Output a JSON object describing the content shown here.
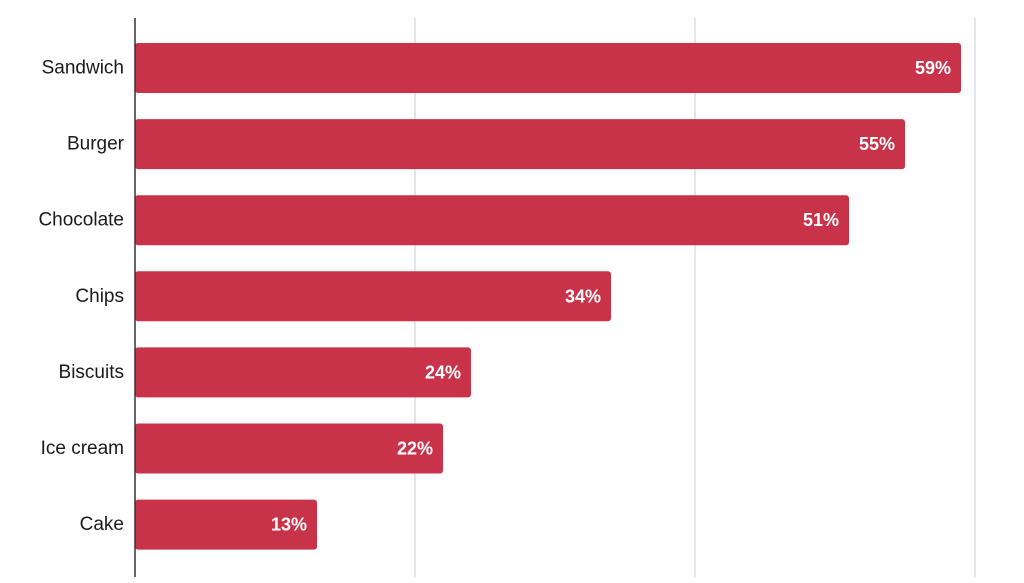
{
  "chart_data": {
    "type": "bar",
    "orientation": "horizontal",
    "categories": [
      "Sandwich",
      "Burger",
      "Chocolate",
      "Chips",
      "Biscuits",
      "Ice cream",
      "Cake"
    ],
    "values": [
      59,
      55,
      51,
      34,
      24,
      22,
      13
    ],
    "value_labels": [
      "59%",
      "55%",
      "51%",
      "34%",
      "24%",
      "22%",
      "13%"
    ],
    "xlim": [
      0,
      60
    ],
    "grid": true,
    "legend": "none",
    "bar_color": "#c8334a",
    "grid_color": "#dcdce6",
    "axis_color": "#333333"
  }
}
